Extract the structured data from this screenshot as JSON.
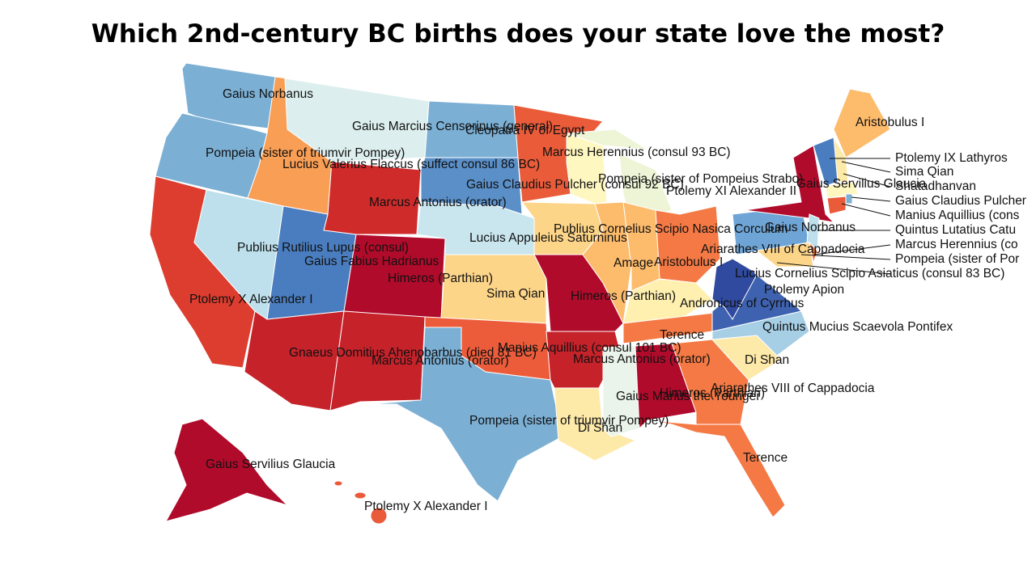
{
  "title": "Which 2nd-century BC births does your state love the most?",
  "labels": [
    "Gaius Norbanus",
    "Gaius Marcius Censorinus (general)",
    "Cleopatra IV of Egypt",
    "Pompeia (sister of triumvir Pompey)",
    "Lucius Valerius Flaccus (suffect consul 86 BC)",
    "Marcus Herennius (consul 93 BC)",
    "Pompeia (sister of Pompeius Strabo)",
    "Gaius Claudius Pulcher (consul 92 BC)",
    "Ptolemy XI Alexander II",
    "Gaius Servilius Glaucia",
    "Marcus Antonius (orator)",
    "Publius Cornelius Scipio Nasica Corculum",
    "Gaius Norbanus",
    "Lucius Appuleius Saturninus",
    "Publius Rutilius Lupus (consul)",
    "Gaius Fabius Hadrianus",
    "Ariarathes VIII of Cappadocia",
    "Amage",
    "Aristobulus I",
    "Ptolemy X Alexander I",
    "Himeros (Parthian)",
    "Sima Qian",
    "Himeros (Parthian)",
    "Ptolemy Apion",
    "Andronicus of Cyrrhus",
    "Quintus Mucius Scaevola Pontifex",
    "Terence",
    "Manius Aquillius (consul 101 BC)",
    "Marcus Antonius (orator)",
    "Gnaeus Domitius Ahenobarbus (died 81 BC)",
    "Marcus Antonius (orator)",
    "Di Shan",
    "Ariarathes VIII of Cappadocia",
    "Himeros (Parthian)",
    "Gaius Marius the Younger",
    "Pompeia (sister of triumvir Pompey)",
    "Di Shan",
    "Terence",
    "Gaius Servilius Glaucia",
    "Ptolemy X Alexander I",
    "Aristobulus I"
  ],
  "callouts": [
    "Ptolemy IX Lathyros",
    "Sima Qian",
    "Shatadhanvan",
    "Gaius Claudius Pulcher",
    "Manius Aquillius (cons",
    "Quintus Lutatius Catu",
    "Marcus Herennius (co",
    "Pompeia (sister of Por",
    "Lucius Cornelius Scipio Asiaticus (consul 83 BC)"
  ]
}
